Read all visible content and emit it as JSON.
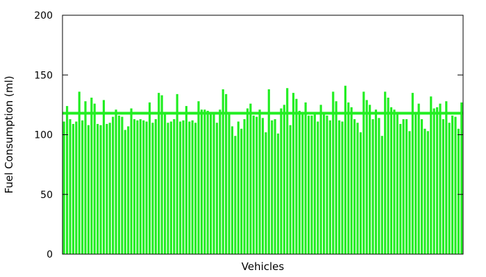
{
  "chart_data": {
    "type": "bar",
    "xlabel": "Vehicles",
    "ylabel": "Fuel Consumption (ml)",
    "ylim": [
      0,
      200
    ],
    "yticks": [
      0,
      50,
      100,
      150,
      200
    ],
    "grid": false,
    "legend": "none",
    "bar_color": "#22ee22",
    "reference_line": {
      "value": 118,
      "color": "#22ee22"
    },
    "values": [
      111,
      124,
      113,
      109,
      111,
      136,
      112,
      128,
      108,
      131,
      126,
      109,
      108,
      129,
      109,
      110,
      115,
      121,
      116,
      115,
      104,
      107,
      122,
      113,
      112,
      113,
      112,
      111,
      127,
      110,
      113,
      135,
      133,
      118,
      110,
      111,
      113,
      134,
      111,
      112,
      124,
      111,
      112,
      110,
      128,
      121,
      121,
      120,
      119,
      118,
      110,
      121,
      138,
      134,
      118,
      107,
      99,
      111,
      105,
      113,
      122,
      126,
      116,
      115,
      121,
      114,
      102,
      138,
      112,
      113,
      101,
      122,
      125,
      139,
      108,
      135,
      130,
      120,
      117,
      127,
      116,
      116,
      119,
      111,
      125,
      117,
      116,
      112,
      136,
      128,
      112,
      111,
      141,
      127,
      123,
      113,
      110,
      102,
      136,
      129,
      125,
      113,
      121,
      114,
      99,
      136,
      131,
      123,
      121,
      118,
      109,
      113,
      113,
      103,
      135,
      117,
      126,
      113,
      105,
      103,
      132,
      122,
      123,
      126,
      113,
      128,
      110,
      116,
      115,
      105,
      127
    ]
  }
}
